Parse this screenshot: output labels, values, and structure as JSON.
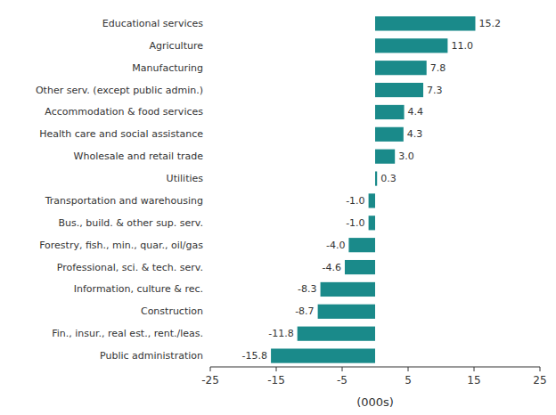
{
  "chart_data": {
    "type": "bar",
    "orientation": "horizontal",
    "categories": [
      "Public administration",
      "Fin., insur., real est., rent./leas.",
      "Construction",
      "Information, culture & rec.",
      "Professional, sci. & tech. serv.",
      "Forestry, fish., min., quar., oil/gas",
      "Bus., build. & other sup. serv.",
      "Transportation and warehousing",
      "Utilities",
      "Wholesale and retail trade",
      "Health care and social assistance",
      "Accommodation & food services",
      "Other serv. (except public admin.)",
      "Manufacturing",
      "Agriculture",
      "Educational services"
    ],
    "values": [
      -15.8,
      -11.8,
      -8.7,
      -8.3,
      -4.6,
      -4.0,
      -1.0,
      -1.0,
      0.3,
      3.0,
      4.3,
      4.4,
      7.3,
      7.8,
      11.0,
      15.2
    ],
    "value_labels": [
      "-15.8",
      "-11.8",
      "-8.7",
      "-8.3",
      "-4.6",
      "-4.0",
      "-1.0",
      "-1.0",
      "0.3",
      "3.0",
      "4.3",
      "4.4",
      "7.3",
      "7.8",
      "11.0",
      "15.2"
    ],
    "color": "#1a8a8a",
    "xlabel": "(000s)",
    "xlim": [
      -25,
      25
    ],
    "xticks": [
      -25,
      -15,
      -5,
      5,
      15,
      25
    ],
    "data_labels": true,
    "grid": false
  }
}
